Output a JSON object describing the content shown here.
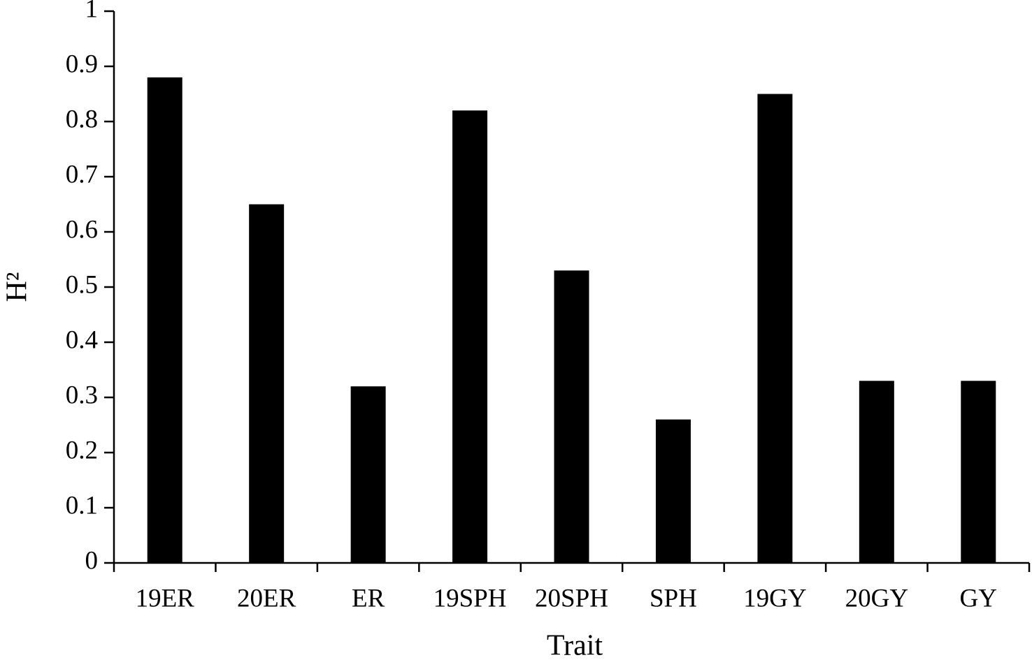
{
  "chart_data": {
    "type": "bar",
    "x_label": "Trait",
    "y_label": "H²",
    "categories": [
      "19ER",
      "20ER",
      "ER",
      "19SPH",
      "20SPH",
      "SPH",
      "19GY",
      "20GY",
      "GY"
    ],
    "values": [
      0.88,
      0.65,
      0.32,
      0.82,
      0.53,
      0.26,
      0.85,
      0.33,
      0.33
    ],
    "color": "#000000",
    "ylim": [
      0,
      1
    ],
    "yticks": [
      0,
      0.1,
      0.2,
      0.3,
      0.4,
      0.5,
      0.6,
      0.7,
      0.8,
      0.9,
      1
    ],
    "grid": false
  }
}
